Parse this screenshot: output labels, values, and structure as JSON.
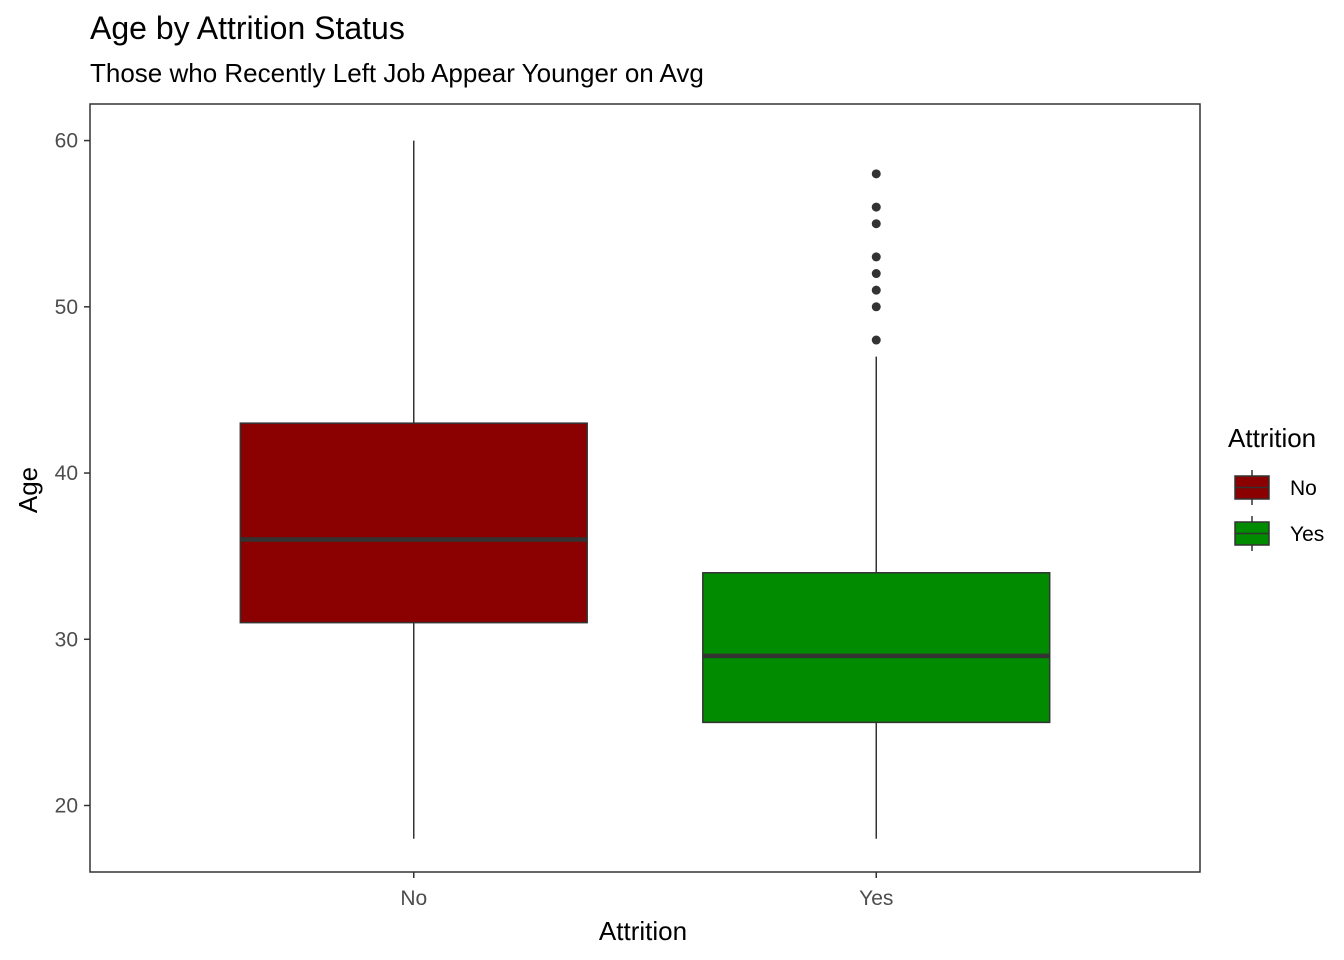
{
  "chart_data": {
    "type": "boxplot",
    "title": "Age by Attrition Status",
    "subtitle": "Those who Recently Left Job Appear Younger on Avg",
    "xlabel": "Attrition",
    "ylabel": "Age",
    "ylim": [
      16,
      62.2
    ],
    "yticks": [
      20,
      30,
      40,
      50,
      60
    ],
    "categories": [
      "No",
      "Yes"
    ],
    "boxes": [
      {
        "category": "No",
        "whisker_low": 18,
        "q1": 31,
        "median": 36,
        "q3": 43,
        "whisker_high": 60,
        "outliers": [],
        "color": "#8B0000"
      },
      {
        "category": "Yes",
        "whisker_low": 18,
        "q1": 25,
        "median": 29,
        "q3": 34,
        "whisker_high": 47,
        "outliers": [
          48,
          50,
          51,
          52,
          53,
          55,
          56,
          58
        ],
        "color": "#008B00"
      }
    ],
    "grid": false,
    "legend": {
      "title": "Attrition",
      "placement": "right",
      "entries": [
        {
          "label": "No",
          "color": "#8B0000"
        },
        {
          "label": "Yes",
          "color": "#008B00"
        }
      ]
    }
  }
}
